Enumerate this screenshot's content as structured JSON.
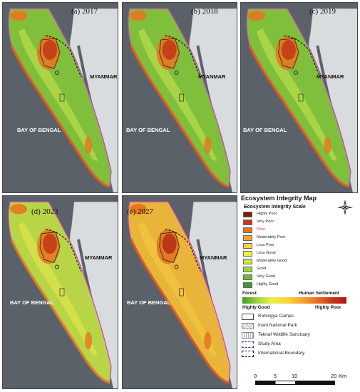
{
  "panels": [
    {
      "label": "(a) 2017",
      "myanmar": "MYANMAR",
      "bay": "BAY OF BENGAL",
      "scheme": "green"
    },
    {
      "label": "(b) 2018",
      "myanmar": "MYANMAR",
      "bay": "BAY OF BENGAL",
      "scheme": "green"
    },
    {
      "label": "(c) 2019",
      "myanmar": "MYANMAR",
      "bay": "BAY OF BENGAL",
      "scheme": "green"
    },
    {
      "label": "(d) 2023",
      "myanmar": "MYANMAR",
      "bay": "BAY OF BENGAL",
      "scheme": "yellow"
    },
    {
      "label": "(e) 2027",
      "myanmar": "MYANMAR",
      "bay": "BAY OF BENGAL",
      "scheme": "orange"
    }
  ],
  "legend": {
    "title": "Ecosystem Integrity Map",
    "scale_title": "Ecosystem Integrity Scale",
    "classes": [
      {
        "label": "Highly Poor",
        "color": "#7a1d0e"
      },
      {
        "label": "Very Poor",
        "color": "#c43a1a"
      },
      {
        "label": "Poor",
        "color": "#e8741f"
      },
      {
        "label": "Moderately Poor",
        "color": "#f2a531"
      },
      {
        "label": "Less Poor",
        "color": "#f7d43c"
      },
      {
        "label": "Less Good",
        "color": "#eef04a"
      },
      {
        "label": "Moderately Good",
        "color": "#c9e84a"
      },
      {
        "label": "Good",
        "color": "#9fd63e"
      },
      {
        "label": "Very Good",
        "color": "#6dbd33"
      },
      {
        "label": "Highly Good",
        "color": "#3f9a2b"
      }
    ],
    "gradient": {
      "left_top": "Forest",
      "right_top": "Human Settlement",
      "left_bottom": "Highly Good",
      "right_bottom": "Highly Poor"
    },
    "overlays": [
      {
        "label": "Rohingya Camps",
        "style": "box"
      },
      {
        "label": "Inani National Park",
        "style": "diag"
      },
      {
        "label": "Teknaf Wildlife Sanctuary",
        "style": "vert"
      },
      {
        "label": "Study Area",
        "style": "blue-dash"
      },
      {
        "label": "International Boundary",
        "style": "black-dash"
      }
    ],
    "scale_bar": {
      "ticks": [
        "0",
        "5",
        "10",
        "20"
      ],
      "unit": "Km"
    }
  },
  "north_arrow": "compass-rose"
}
